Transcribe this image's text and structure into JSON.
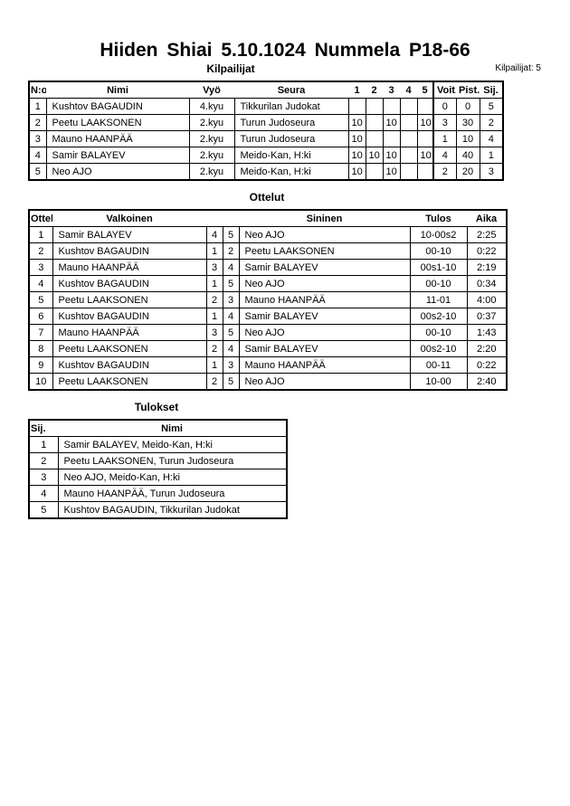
{
  "title": "Hiiden Shiai  5.10.1024  Nummela   P18-66",
  "competitors": {
    "heading": "Kilpailijat",
    "count_label": "Kilpailijat: 5",
    "columns": [
      "N:o",
      "Nimi",
      "Vyö",
      "Seura",
      "1",
      "2",
      "3",
      "4",
      "5",
      "Voit.",
      "Pist.",
      "Sij."
    ],
    "rows": [
      [
        "1",
        "Kushtov BAGAUDIN",
        "4.kyu",
        "Tikkurilan Judokat",
        "",
        "",
        "",
        "",
        "",
        "0",
        "0",
        "5"
      ],
      [
        "2",
        "Peetu LAAKSONEN",
        "2.kyu",
        "Turun Judoseura",
        "10",
        "",
        "10",
        "",
        "10",
        "3",
        "30",
        "2"
      ],
      [
        "3",
        "Mauno HAANPÄÄ",
        "2.kyu",
        "Turun Judoseura",
        "10",
        "",
        "",
        "",
        "",
        "1",
        "10",
        "4"
      ],
      [
        "4",
        "Samir BALAYEV",
        "2.kyu",
        "Meido-Kan, H:ki",
        "10",
        "10",
        "10",
        "",
        "10",
        "4",
        "40",
        "1"
      ],
      [
        "5",
        "Neo AJO",
        "2.kyu",
        "Meido-Kan, H:ki",
        "10",
        "",
        "10",
        "",
        "",
        "2",
        "20",
        "3"
      ]
    ]
  },
  "matches": {
    "heading": "Ottelut",
    "columns": [
      "Ottelu",
      "Valkoinen",
      "",
      "",
      "Sininen",
      "Tulos",
      "Aika"
    ],
    "rows": [
      [
        "1",
        "Samir BALAYEV",
        "4",
        "5",
        "Neo AJO",
        "10-00s2",
        "2:25"
      ],
      [
        "2",
        "Kushtov BAGAUDIN",
        "1",
        "2",
        "Peetu LAAKSONEN",
        "00-10",
        "0:22"
      ],
      [
        "3",
        "Mauno HAANPÄÄ",
        "3",
        "4",
        "Samir BALAYEV",
        "00s1-10",
        "2:19"
      ],
      [
        "4",
        "Kushtov BAGAUDIN",
        "1",
        "5",
        "Neo AJO",
        "00-10",
        "0:34"
      ],
      [
        "5",
        "Peetu LAAKSONEN",
        "2",
        "3",
        "Mauno HAANPÄÄ",
        "11-01",
        "4:00"
      ],
      [
        "6",
        "Kushtov BAGAUDIN",
        "1",
        "4",
        "Samir BALAYEV",
        "00s2-10",
        "0:37"
      ],
      [
        "7",
        "Mauno HAANPÄÄ",
        "3",
        "5",
        "Neo AJO",
        "00-10",
        "1:43"
      ],
      [
        "8",
        "Peetu LAAKSONEN",
        "2",
        "4",
        "Samir BALAYEV",
        "00s2-10",
        "2:20"
      ],
      [
        "9",
        "Kushtov BAGAUDIN",
        "1",
        "3",
        "Mauno HAANPÄÄ",
        "00-11",
        "0:22"
      ],
      [
        "10",
        "Peetu LAAKSONEN",
        "2",
        "5",
        "Neo AJO",
        "10-00",
        "2:40"
      ]
    ]
  },
  "results": {
    "heading": "Tulokset",
    "columns": [
      "Sij.",
      "Nimi"
    ],
    "rows": [
      [
        "1",
        "Samir BALAYEV, Meido-Kan, H:ki"
      ],
      [
        "2",
        "Peetu LAAKSONEN, Turun Judoseura"
      ],
      [
        "3",
        "Neo AJO, Meido-Kan, H:ki"
      ],
      [
        "4",
        "Mauno HAANPÄÄ, Turun Judoseura"
      ],
      [
        "5",
        "Kushtov BAGAUDIN, Tikkurilan Judokat"
      ]
    ]
  }
}
